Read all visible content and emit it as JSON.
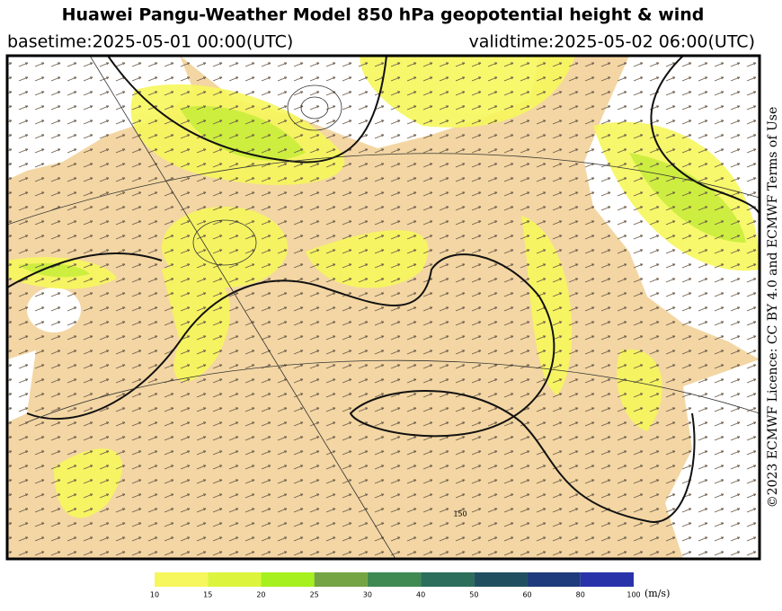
{
  "header": {
    "title": "Huawei Pangu-Weather Model 850 hPa geopotential height & wind",
    "basetime": "basetime:2025-05-01 00:00(UTC)",
    "validtime": "validtime:2025-05-02 06:00(UTC)"
  },
  "license": "©2023 ECMWF Licence: CC BY 4.0 and ECMWF Terms of Use",
  "map": {
    "contour_labels": [
      "150"
    ]
  },
  "colorbar": {
    "ticks": [
      10,
      15,
      20,
      25,
      30,
      40,
      50,
      60,
      80,
      100
    ],
    "colors": [
      "#f6f75c",
      "#dcf53c",
      "#a6f020",
      "#74a444",
      "#3f8a52",
      "#2b6e5c",
      "#205060",
      "#1e3c7c",
      "#2a32aa"
    ],
    "unit": "(m/s)"
  }
}
